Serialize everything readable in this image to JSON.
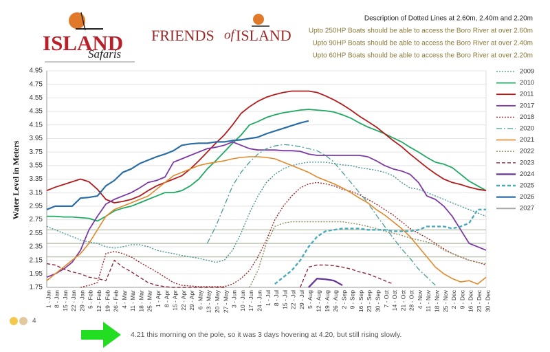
{
  "header": {
    "logo_left": {
      "name": "ISLAND",
      "script": "Safaris"
    },
    "logo_right": {
      "friends": "FRIENDS",
      "of": "of",
      "island": "ISLAND"
    },
    "description": {
      "title": "Description of Dotted Lines at 2.60m, 2.40m and 2.20m",
      "lines": [
        "Upto 250HP Boats should be able to access the Boro River at over 2.60m",
        "Upto 90HP Boats should be able to access the Boro River at over 2.40m",
        "Upto 60HP Boats should be able to access the Boro River at over 2.20m"
      ]
    }
  },
  "chart_data": {
    "type": "line",
    "ylabel": "Water Level in Meters",
    "ylim": [
      1.75,
      4.95
    ],
    "yticks": [
      1.75,
      1.95,
      2.15,
      2.35,
      2.55,
      2.75,
      2.95,
      3.15,
      3.35,
      3.55,
      3.75,
      3.95,
      4.15,
      4.35,
      4.55,
      4.75,
      4.95
    ],
    "grid": true,
    "legend": "right",
    "reference_lines": [
      2.6,
      2.4,
      2.2
    ],
    "reference_color": "#a9b79c",
    "categories": [
      "1 - Jan",
      "8 - Jan",
      "15 - Jan",
      "22 - Jan",
      "29 - Jan",
      "5 - Feb",
      "12 - Feb",
      "19 - Feb",
      "26 - Feb",
      "4 - Mar",
      "11 - Mar",
      "18 - Mar",
      "25 - Mar",
      "1 - Apr",
      "8 - Apr",
      "15 - Apr",
      "22 - Apr",
      "29 - Apr",
      "6 - May",
      "13 - May",
      "20 - May",
      "27 - May",
      "3 - Jun",
      "10 - Jun",
      "17 - Jun",
      "24 - Jun",
      "1 - Jul",
      "8 - Jul",
      "15 - Jul",
      "22 - Jul",
      "29 - Jul",
      "5 - Aug",
      "12 - Aug",
      "19 - Aug",
      "26 - Aug",
      "2 - Sep",
      "9 - Sep",
      "16 - Sep",
      "23 - Sep",
      "30 - Sep",
      "7 - Oct",
      "14 - Oct",
      "21 - Oct",
      "28 - Oct",
      "4 - Nov",
      "11 - Nov",
      "18 - Nov",
      "25 - Nov",
      "2 - Dec",
      "9 - Dec",
      "16 - Dec",
      "23 - Dec",
      "30 - Dec"
    ],
    "series": [
      {
        "name": "2009",
        "color": "#3d8f8f",
        "dash": "dotted",
        "width": 1.3,
        "values": [
          2.65,
          2.6,
          2.55,
          2.5,
          2.45,
          2.42,
          2.4,
          2.35,
          2.33,
          2.35,
          2.38,
          2.38,
          2.35,
          2.3,
          2.27,
          2.25,
          2.22,
          2.2,
          2.18,
          2.15,
          2.12,
          2.15,
          2.3,
          2.55,
          2.85,
          3.1,
          3.3,
          3.42,
          3.5,
          3.55,
          3.58,
          3.6,
          3.6,
          3.6,
          3.58,
          3.56,
          3.55,
          3.52,
          3.5,
          3.48,
          3.45,
          3.4,
          3.3,
          3.22,
          3.2,
          3.15,
          3.1,
          3.05,
          3.0,
          2.95,
          2.9,
          2.85,
          2.8
        ]
      },
      {
        "name": "2010",
        "color": "#1fa862",
        "dash": "solid",
        "width": 1.8,
        "values": [
          2.8,
          2.8,
          2.79,
          2.79,
          2.78,
          2.77,
          2.73,
          2.8,
          2.88,
          2.92,
          2.95,
          3.0,
          3.05,
          3.1,
          3.15,
          3.15,
          3.18,
          3.25,
          3.35,
          3.5,
          3.62,
          3.75,
          3.88,
          4.0,
          4.15,
          4.2,
          4.26,
          4.3,
          4.33,
          4.35,
          4.37,
          4.38,
          4.37,
          4.36,
          4.34,
          4.3,
          4.25,
          4.18,
          4.12,
          4.07,
          4.02,
          3.96,
          3.9,
          3.82,
          3.75,
          3.67,
          3.6,
          3.57,
          3.52,
          3.42,
          3.32,
          3.25,
          3.18
        ]
      },
      {
        "name": "2011",
        "color": "#b01c1c",
        "dash": "solid",
        "width": 1.8,
        "values": [
          3.18,
          3.23,
          3.27,
          3.31,
          3.35,
          3.31,
          3.2,
          3.05,
          3.0,
          3.02,
          3.05,
          3.1,
          3.18,
          3.25,
          3.3,
          3.35,
          3.4,
          3.5,
          3.62,
          3.75,
          3.88,
          4.0,
          4.15,
          4.32,
          4.42,
          4.5,
          4.56,
          4.6,
          4.63,
          4.65,
          4.65,
          4.65,
          4.63,
          4.58,
          4.52,
          4.45,
          4.37,
          4.28,
          4.2,
          4.12,
          4.02,
          3.92,
          3.83,
          3.72,
          3.62,
          3.52,
          3.43,
          3.35,
          3.3,
          3.27,
          3.23,
          3.2,
          3.18
        ]
      },
      {
        "name": "2017",
        "color": "#7b3aa3",
        "dash": "solid",
        "width": 1.8,
        "values": [
          1.9,
          1.95,
          2.02,
          2.12,
          2.3,
          2.6,
          2.8,
          2.98,
          3.05,
          3.1,
          3.15,
          3.22,
          3.3,
          3.33,
          3.38,
          3.6,
          3.65,
          3.7,
          3.75,
          3.8,
          3.82,
          3.85,
          3.9,
          3.85,
          3.8,
          3.78,
          3.78,
          3.78,
          3.77,
          3.77,
          3.76,
          3.72,
          3.7,
          3.7,
          3.7,
          3.7,
          3.7,
          3.7,
          3.68,
          3.62,
          3.55,
          3.5,
          3.47,
          3.42,
          3.3,
          3.1,
          3.05,
          2.95,
          2.8,
          2.6,
          2.4,
          2.35,
          2.3
        ]
      },
      {
        "name": "2018",
        "color": "#9a2a2a",
        "dash": "dotted",
        "width": 1.4,
        "values": [
          null,
          null,
          null,
          null,
          1.75,
          1.78,
          1.82,
          2.25,
          2.28,
          2.25,
          2.2,
          2.12,
          2.05,
          1.98,
          1.9,
          1.82,
          1.78,
          1.77,
          1.76,
          1.76,
          1.76,
          1.76,
          1.8,
          1.88,
          2.0,
          2.2,
          2.45,
          2.75,
          2.95,
          3.1,
          3.22,
          3.28,
          3.3,
          3.28,
          3.25,
          3.2,
          3.17,
          3.12,
          3.05,
          2.98,
          2.9,
          2.82,
          2.72,
          2.62,
          2.55,
          2.48,
          2.4,
          2.32,
          2.25,
          2.2,
          2.15,
          2.12,
          2.08
        ]
      },
      {
        "name": "2020",
        "color": "#4a9a9a",
        "dash": "dashdot",
        "width": 1.3,
        "values": [
          null,
          null,
          null,
          null,
          null,
          null,
          null,
          null,
          null,
          null,
          null,
          null,
          null,
          null,
          null,
          null,
          null,
          null,
          null,
          2.4,
          2.65,
          2.95,
          3.25,
          3.45,
          3.6,
          3.72,
          3.8,
          3.84,
          3.86,
          3.85,
          3.83,
          3.8,
          3.77,
          3.7,
          3.6,
          3.45,
          3.3,
          3.15,
          3.0,
          2.82,
          2.65,
          2.48,
          2.32,
          2.18,
          2.02,
          1.9,
          1.78,
          null,
          null,
          null,
          null,
          null,
          null
        ]
      },
      {
        "name": "2021",
        "color": "#e0882a",
        "dash": "solid",
        "width": 1.6,
        "values": [
          1.85,
          1.95,
          2.05,
          2.15,
          2.25,
          2.4,
          2.6,
          2.8,
          2.9,
          2.95,
          3.0,
          3.05,
          3.1,
          3.2,
          3.3,
          3.4,
          3.45,
          3.5,
          3.55,
          3.58,
          3.6,
          3.62,
          3.65,
          3.67,
          3.68,
          3.68,
          3.67,
          3.65,
          3.6,
          3.55,
          3.5,
          3.45,
          3.38,
          3.33,
          3.28,
          3.22,
          3.15,
          3.07,
          3.0,
          2.9,
          2.82,
          2.72,
          2.62,
          2.5,
          2.35,
          2.2,
          2.05,
          1.95,
          1.88,
          1.83,
          1.85,
          1.8,
          1.9
        ]
      },
      {
        "name": "2022",
        "color": "#8c8c5c",
        "dash": "dotted",
        "width": 1.4,
        "values": [
          null,
          null,
          null,
          null,
          null,
          null,
          null,
          null,
          null,
          null,
          null,
          null,
          null,
          null,
          null,
          null,
          null,
          null,
          null,
          null,
          null,
          null,
          null,
          null,
          1.75,
          2.0,
          2.4,
          2.65,
          2.7,
          2.72,
          2.72,
          2.72,
          2.72,
          2.72,
          2.72,
          2.72,
          2.7,
          2.68,
          2.65,
          2.62,
          2.58,
          2.55,
          2.52,
          2.48,
          2.45,
          2.42,
          2.38,
          2.3,
          2.25,
          2.2,
          2.15,
          2.12,
          2.1
        ]
      },
      {
        "name": "2023",
        "color": "#8a2a3c",
        "dash": "dashed",
        "width": 1.4,
        "values": [
          2.1,
          2.08,
          2.02,
          1.98,
          1.95,
          1.9,
          1.88,
          1.85,
          2.15,
          2.05,
          1.98,
          1.9,
          1.82,
          1.78,
          1.76,
          1.75,
          1.75,
          1.75,
          1.75,
          1.75,
          1.75,
          1.75,
          null,
          null,
          null,
          null,
          null,
          null,
          null,
          null,
          1.75,
          2.05,
          2.08,
          2.08,
          2.07,
          2.05,
          2.02,
          1.98,
          1.95,
          1.9,
          1.85,
          1.8,
          null,
          null,
          null,
          null,
          null,
          null,
          null,
          null,
          null,
          null,
          null
        ]
      },
      {
        "name": "2024",
        "color": "#6a3a9c",
        "dash": "solid",
        "width": 2.4,
        "values": [
          null,
          null,
          null,
          null,
          null,
          null,
          null,
          null,
          null,
          null,
          null,
          null,
          null,
          null,
          null,
          null,
          null,
          null,
          null,
          null,
          null,
          null,
          null,
          null,
          null,
          null,
          null,
          null,
          null,
          null,
          null,
          1.75,
          1.88,
          1.87,
          1.85,
          1.78,
          null,
          null,
          null,
          null,
          null,
          null,
          null,
          null,
          null,
          null,
          null,
          null,
          null,
          null,
          null,
          null,
          null
        ]
      },
      {
        "name": "2025",
        "color": "#4aaabb",
        "dash": "dashed",
        "width": 2.4,
        "values": [
          null,
          null,
          null,
          null,
          null,
          null,
          null,
          null,
          null,
          null,
          null,
          null,
          null,
          null,
          null,
          null,
          null,
          null,
          null,
          null,
          null,
          null,
          null,
          null,
          null,
          null,
          null,
          1.8,
          1.9,
          2.0,
          2.15,
          2.35,
          2.5,
          2.58,
          2.6,
          2.62,
          2.62,
          2.62,
          2.6,
          2.6,
          2.6,
          2.58,
          2.58,
          2.58,
          2.6,
          2.65,
          2.65,
          2.65,
          2.62,
          2.65,
          2.7,
          2.9,
          2.9
        ]
      },
      {
        "name": "2026",
        "color": "#2a6ca3",
        "dash": "solid",
        "width": 2.2,
        "values": [
          2.9,
          2.95,
          2.95,
          2.95,
          3.07,
          3.08,
          3.1,
          3.25,
          3.33,
          3.45,
          3.5,
          3.58,
          3.63,
          3.68,
          3.72,
          3.77,
          3.85,
          3.87,
          3.88,
          3.88,
          3.9,
          3.9,
          3.92,
          3.93,
          3.95,
          3.97,
          4.02,
          4.06,
          4.1,
          4.14,
          4.18,
          4.21,
          null,
          null,
          null,
          null,
          null,
          null,
          null,
          null,
          null,
          null,
          null,
          null,
          null,
          null,
          null,
          null,
          null,
          null,
          null,
          null,
          null
        ]
      },
      {
        "name": "2027",
        "color": "#aaaaaa",
        "dash": "solid",
        "width": 2.2,
        "values": [
          null,
          null,
          null,
          null,
          null,
          null,
          null,
          null,
          null,
          null,
          null,
          null,
          null,
          null,
          null,
          null,
          null,
          null,
          null,
          null,
          null,
          null,
          null,
          null,
          null,
          null,
          null,
          null,
          null,
          null,
          null,
          null,
          null,
          null,
          null,
          null,
          null,
          null,
          null,
          null,
          null,
          null,
          null,
          null,
          null,
          null,
          null,
          null,
          null,
          null,
          null,
          null,
          null
        ]
      }
    ]
  },
  "comment": {
    "reactions": "4",
    "text": "4.21 this morning on the pole, so it was 3 days hovering at 4.20, but still rising slowly."
  }
}
